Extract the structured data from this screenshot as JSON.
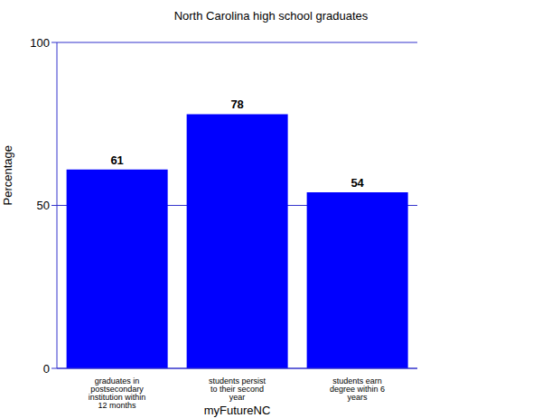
{
  "chart_data": {
    "type": "bar",
    "title": "North Carolina high school graduates",
    "x_label": "myFutureNC",
    "y_label": "Percentage",
    "categories": [
      "graduates in postsecondary institution within 12 months",
      "students persist to their second year",
      "students earn degree within 6 years"
    ],
    "values": [
      61,
      78,
      54
    ],
    "color": "#0000ff",
    "ylim": [
      0,
      100
    ],
    "yticks": [
      0,
      50,
      100
    ],
    "grid": true,
    "data_labels": true
  }
}
